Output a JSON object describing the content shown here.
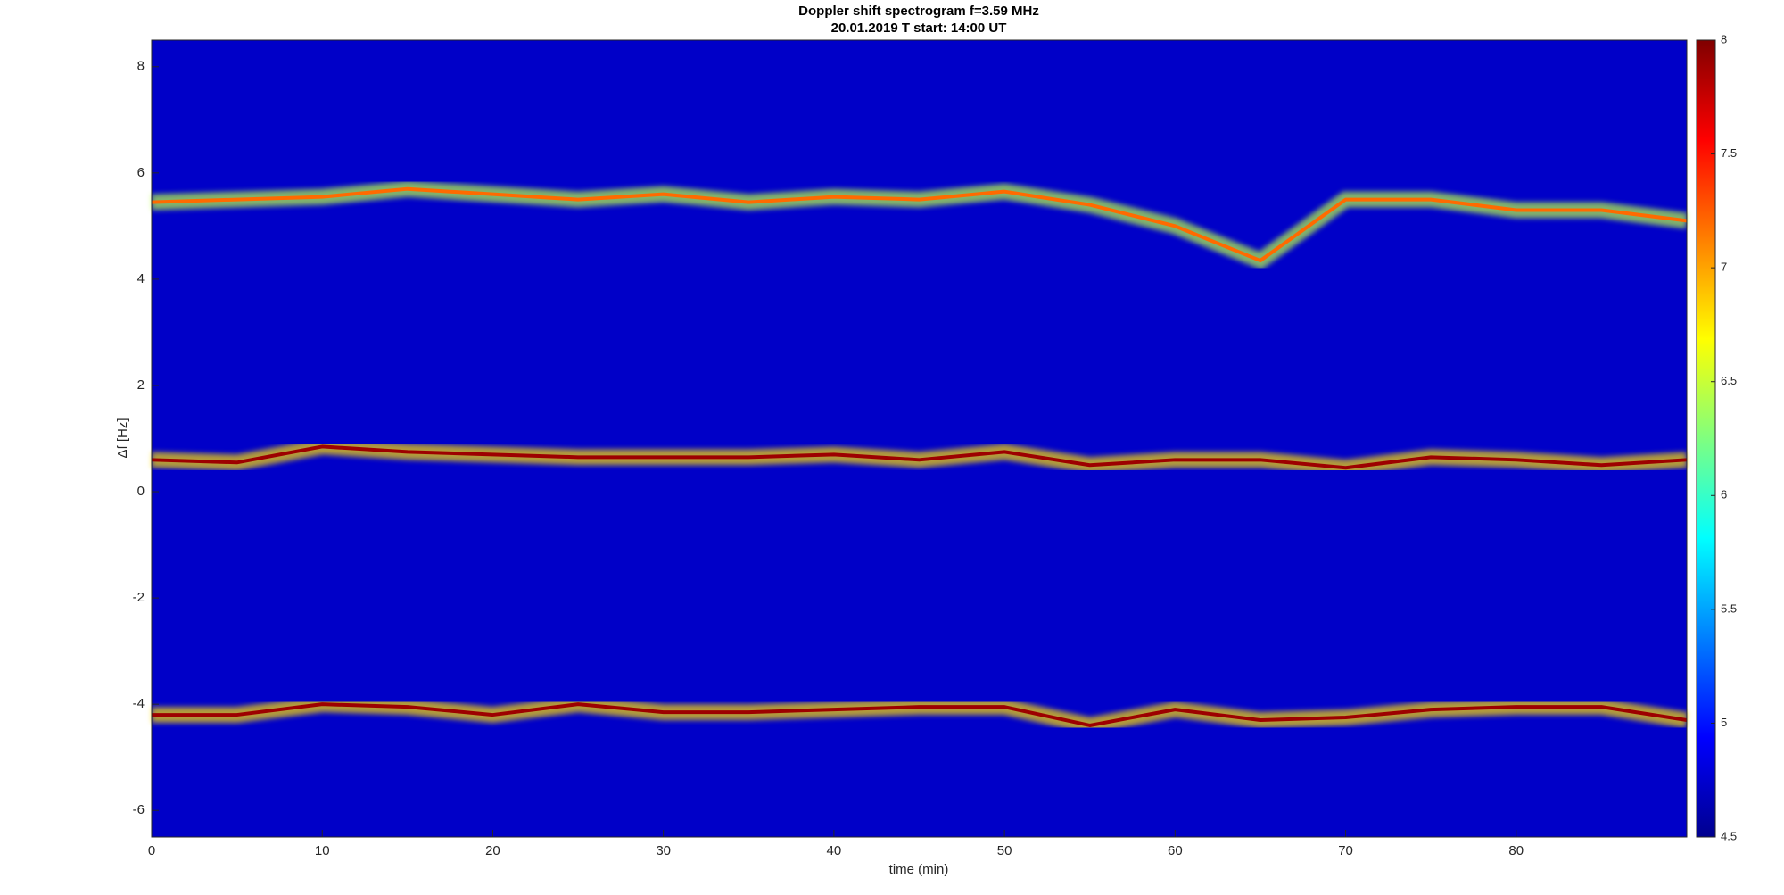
{
  "chart_data": {
    "type": "spectrogram",
    "title": "Doppler shift spectrogram f=3.59 MHz",
    "subtitle": "20.01.2019    T start: 14:00 UT",
    "xlabel": "time (min)",
    "ylabel": "Δf [Hz]",
    "xlim": [
      0,
      90
    ],
    "xticks": [
      0,
      10,
      20,
      30,
      40,
      50,
      60,
      70,
      80
    ],
    "ylim": [
      -6.5,
      8.5
    ],
    "yticks": [
      -6,
      -4,
      -2,
      0,
      2,
      4,
      6,
      8
    ],
    "clim": [
      4.5,
      8
    ],
    "cticks": [
      4.5,
      5,
      5.5,
      6,
      6.5,
      7,
      7.5,
      8
    ],
    "colormap": "jet",
    "background_level": 4.75,
    "traces": [
      {
        "level": 7.2,
        "x": [
          0,
          5,
          10,
          15,
          20,
          25,
          30,
          35,
          40,
          45,
          50,
          55,
          60,
          65,
          70,
          75,
          80,
          85,
          90
        ],
        "values": [
          5.45,
          5.5,
          5.55,
          5.7,
          5.6,
          5.5,
          5.6,
          5.45,
          5.55,
          5.5,
          5.65,
          5.4,
          5.0,
          4.35,
          5.5,
          5.5,
          5.3,
          5.3,
          5.1
        ]
      },
      {
        "level": 7.9,
        "x": [
          0,
          5,
          10,
          15,
          20,
          25,
          30,
          35,
          40,
          45,
          50,
          55,
          60,
          65,
          70,
          75,
          80,
          85,
          90
        ],
        "values": [
          0.6,
          0.55,
          0.85,
          0.75,
          0.7,
          0.65,
          0.65,
          0.65,
          0.7,
          0.6,
          0.75,
          0.5,
          0.6,
          0.6,
          0.45,
          0.65,
          0.6,
          0.5,
          0.6
        ]
      },
      {
        "level": 7.9,
        "x": [
          0,
          5,
          10,
          15,
          20,
          25,
          30,
          35,
          40,
          45,
          50,
          55,
          60,
          65,
          70,
          75,
          80,
          85,
          90
        ],
        "values": [
          -4.2,
          -4.2,
          -4.0,
          -4.05,
          -4.2,
          -4.0,
          -4.15,
          -4.15,
          -4.1,
          -4.05,
          -4.05,
          -4.4,
          -4.1,
          -4.3,
          -4.25,
          -4.1,
          -4.05,
          -4.05,
          -4.3
        ]
      }
    ]
  }
}
